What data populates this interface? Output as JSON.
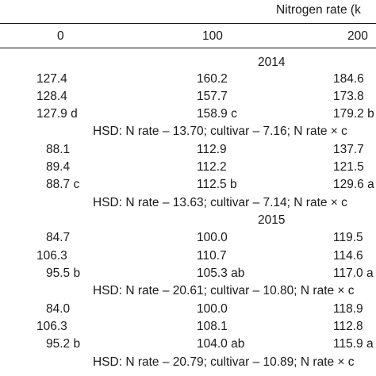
{
  "header": {
    "group_label": "Nitrogen rate (k",
    "columns": [
      "0",
      "100",
      "200"
    ]
  },
  "sections": [
    {
      "year": "2014",
      "rows": [
        {
          "c0": "127.4",
          "c1": "160.2",
          "c2": "184.6"
        },
        {
          "c0": "128.4",
          "c1": "157.7",
          "c2": "173.8"
        },
        {
          "c0": "127.9 d",
          "c1": "158.9 c",
          "c2": "179.2 b"
        }
      ],
      "hsd": "HSD: N rate – 13.70; cultivar – 7.16; N rate × c",
      "rows2": [
        {
          "c0": "88.1",
          "c1": "112.9",
          "c2": "137.7"
        },
        {
          "c0": "89.4",
          "c1": "112.2",
          "c2": "121.5"
        },
        {
          "c0": "88.7 c",
          "c1": "112.5 b",
          "c2": "129.6 a"
        }
      ],
      "hsd2": "HSD: N rate – 13.63; cultivar – 7.14; N rate × c"
    },
    {
      "year": "2015",
      "rows": [
        {
          "c0": "84.7",
          "c1": "100.0",
          "c2": "119.5"
        },
        {
          "c0": "106.3",
          "c1": "110.7",
          "c2": "114.6"
        },
        {
          "c0": "95.5 b",
          "c1": "105.3 ab",
          "c2": "117.0 a"
        }
      ],
      "hsd": "HSD: N rate – 20.61; cultivar – 10.80; N rate × c",
      "rows2": [
        {
          "c0": "84.0",
          "c1": "100.0",
          "c2": "118.9"
        },
        {
          "c0": "106.3",
          "c1": "108.1",
          "c2": "112.8"
        },
        {
          "c0": "95.2 b",
          "c1": "104.0 ab",
          "c2": "115.9 a"
        }
      ],
      "hsd2": "HSD: N rate – 20.79; cultivar – 10.89; N rate × c"
    }
  ]
}
